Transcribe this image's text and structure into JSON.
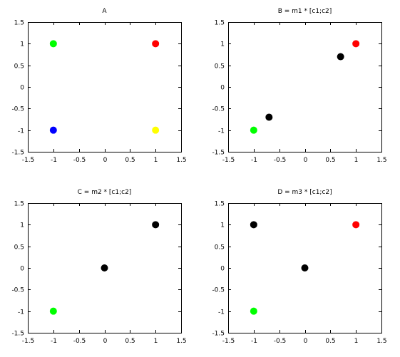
{
  "chart_data": [
    {
      "type": "scatter",
      "title": "A",
      "xlim": [
        -1.5,
        1.5
      ],
      "ylim": [
        -1.5,
        1.5
      ],
      "xticks": [
        "-1.5",
        "-1",
        "-0.5",
        "0",
        "0.5",
        "1",
        "1.5"
      ],
      "yticks": [
        "1.5",
        "1",
        "0.5",
        "0",
        "-0.5",
        "-1",
        "-1.5"
      ],
      "grid": false,
      "points": [
        {
          "x": -1,
          "y": 1,
          "color": "#00ff00"
        },
        {
          "x": 1,
          "y": 1,
          "color": "#ff0000"
        },
        {
          "x": -1,
          "y": -1,
          "color": "#0000ff"
        },
        {
          "x": 1,
          "y": -1,
          "color": "#ffff00"
        }
      ]
    },
    {
      "type": "scatter",
      "title": "B = m1 * [c1;c2]",
      "xlim": [
        -1.5,
        1.5
      ],
      "ylim": [
        -1.5,
        1.5
      ],
      "xticks": [
        "-1.5",
        "-1",
        "-0.5",
        "0",
        "0.5",
        "1",
        "1.5"
      ],
      "yticks": [
        "1.5",
        "1",
        "0.5",
        "0",
        "-0.5",
        "-1",
        "-1.5"
      ],
      "grid": false,
      "points": [
        {
          "x": 1,
          "y": 1,
          "color": "#ff0000"
        },
        {
          "x": 0.7,
          "y": 0.7,
          "color": "#000000"
        },
        {
          "x": -0.7,
          "y": -0.7,
          "color": "#000000"
        },
        {
          "x": -1,
          "y": -1,
          "color": "#00ff00"
        }
      ]
    },
    {
      "type": "scatter",
      "title": "C = m2 * [c1;c2]",
      "xlim": [
        -1.5,
        1.5
      ],
      "ylim": [
        -1.5,
        1.5
      ],
      "xticks": [
        "-1.5",
        "-1",
        "-0.5",
        "0",
        "0.5",
        "1",
        "1.5"
      ],
      "yticks": [
        "1.5",
        "1",
        "0.5",
        "0",
        "-0.5",
        "-1",
        "-1.5"
      ],
      "grid": false,
      "points": [
        {
          "x": 1,
          "y": 1,
          "color": "#000000"
        },
        {
          "x": 0,
          "y": 0,
          "color": "#000000"
        },
        {
          "x": -1,
          "y": -1,
          "color": "#00ff00"
        }
      ]
    },
    {
      "type": "scatter",
      "title": "D = m3 * [c1;c2]",
      "xlim": [
        -1.5,
        1.5
      ],
      "ylim": [
        -1.5,
        1.5
      ],
      "xticks": [
        "-1.5",
        "-1",
        "-0.5",
        "0",
        "0.5",
        "1",
        "1.5"
      ],
      "yticks": [
        "1.5",
        "1",
        "0.5",
        "0",
        "-0.5",
        "-1",
        "-1.5"
      ],
      "grid": false,
      "points": [
        {
          "x": -1,
          "y": 1,
          "color": "#000000"
        },
        {
          "x": 1,
          "y": 1,
          "color": "#ff0000"
        },
        {
          "x": 0,
          "y": 0,
          "color": "#000000"
        },
        {
          "x": -1,
          "y": -1,
          "color": "#00ff00"
        }
      ]
    }
  ]
}
